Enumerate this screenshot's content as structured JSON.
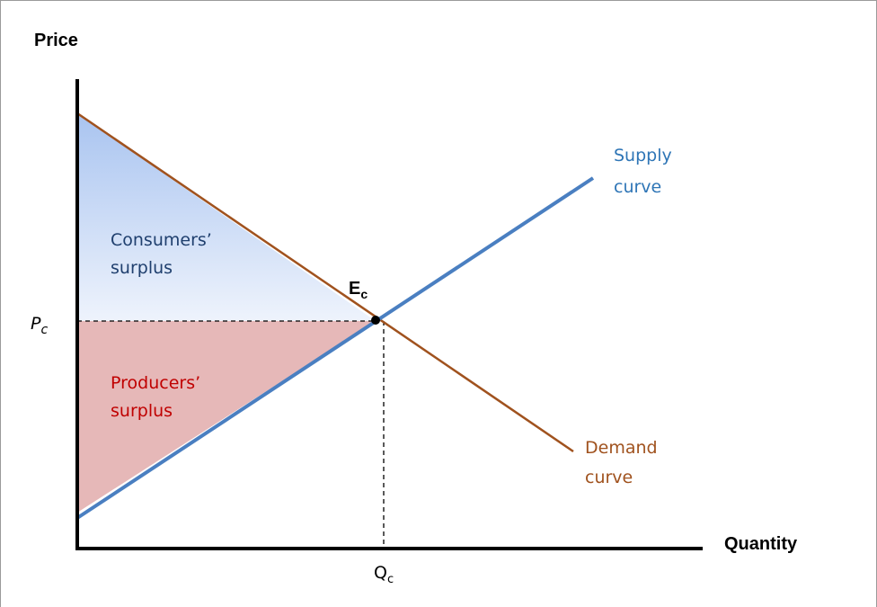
{
  "axes": {
    "y_label": "Price",
    "x_label": "Quantity"
  },
  "price_label": {
    "text": "P",
    "sub": "c"
  },
  "quantity_label": {
    "text": "Q",
    "sub": "c"
  },
  "equilibrium_label": {
    "text": "E",
    "sub": "c"
  },
  "supply_label": [
    "Supply",
    "curve"
  ],
  "demand_label": [
    "Demand",
    "curve"
  ],
  "consumer_surplus_label": [
    "Consumers’",
    "surplus"
  ],
  "producer_surplus_label": [
    "Producers’",
    "surplus"
  ]
}
